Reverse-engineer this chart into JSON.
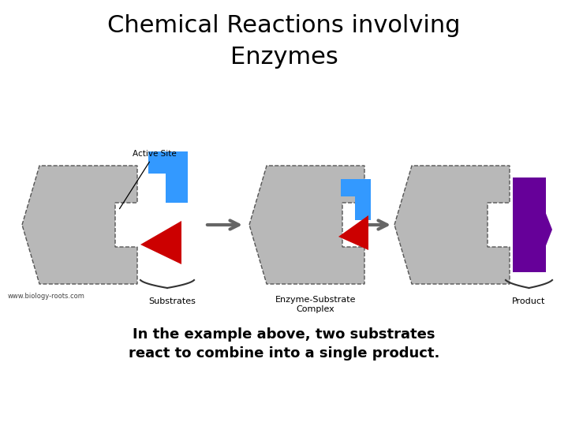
{
  "title_line1": "Chemical Reactions involving",
  "title_line2": "Enzymes",
  "title_fontsize": 22,
  "subtitle": "In the example above, two substrates\nreact to combine into a single product.",
  "subtitle_fontsize": 13,
  "website": "www.biology-roots.com",
  "label_substrates": "Substrates",
  "label_complex": "Enzyme-Substrate\nComplex",
  "label_product": "Product",
  "label_active_site": "Active Site",
  "bg_color": "#ffffff",
  "enzyme_color": "#b8b8b8",
  "blue_color": "#3399ff",
  "red_color": "#cc0000",
  "purple_color": "#660099",
  "arrow_color": "#666666",
  "text_color": "#000000",
  "brace_color": "#333333"
}
